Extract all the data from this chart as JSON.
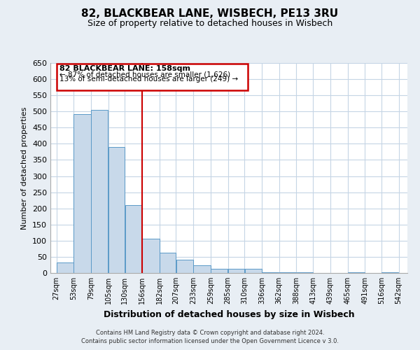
{
  "title": "82, BLACKBEAR LANE, WISBECH, PE13 3RU",
  "subtitle": "Size of property relative to detached houses in Wisbech",
  "xlabel": "Distribution of detached houses by size in Wisbech",
  "ylabel": "Number of detached properties",
  "bar_left_edges": [
    27,
    53,
    79,
    105,
    130,
    156,
    182,
    207,
    233,
    259,
    285,
    310,
    336,
    362,
    388,
    413,
    439,
    465,
    491,
    516
  ],
  "bar_widths": [
    26,
    26,
    26,
    25,
    26,
    26,
    25,
    26,
    26,
    26,
    25,
    26,
    26,
    26,
    25,
    26,
    26,
    26,
    25,
    26
  ],
  "bar_heights": [
    32,
    492,
    504,
    390,
    210,
    107,
    62,
    42,
    23,
    13,
    13,
    12,
    2,
    2,
    2,
    0,
    0,
    2,
    0,
    2
  ],
  "bar_color": "#c8d9ea",
  "bar_edgecolor": "#5a9ac8",
  "tick_labels": [
    "27sqm",
    "53sqm",
    "79sqm",
    "105sqm",
    "130sqm",
    "156sqm",
    "182sqm",
    "207sqm",
    "233sqm",
    "259sqm",
    "285sqm",
    "310sqm",
    "336sqm",
    "362sqm",
    "388sqm",
    "413sqm",
    "439sqm",
    "465sqm",
    "491sqm",
    "516sqm",
    "542sqm"
  ],
  "tick_positions": [
    27,
    53,
    79,
    105,
    130,
    156,
    182,
    207,
    233,
    259,
    285,
    310,
    336,
    362,
    388,
    413,
    439,
    465,
    491,
    516,
    542
  ],
  "yticks": [
    0,
    50,
    100,
    150,
    200,
    250,
    300,
    350,
    400,
    450,
    500,
    550,
    600,
    650
  ],
  "ylim": [
    0,
    650
  ],
  "xlim": [
    18,
    555
  ],
  "reference_line_x": 156,
  "reference_line_color": "#cc0000",
  "annotation_title": "82 BLACKBEAR LANE: 158sqm",
  "annotation_line1": "← 87% of detached houses are smaller (1,626)",
  "annotation_line2": "13% of semi-detached houses are larger (249) →",
  "footer_line1": "Contains HM Land Registry data © Crown copyright and database right 2024.",
  "footer_line2": "Contains public sector information licensed under the Open Government Licence v 3.0.",
  "bg_color": "#e8eef4",
  "plot_bg_color": "#ffffff",
  "grid_color": "#c5d5e5"
}
